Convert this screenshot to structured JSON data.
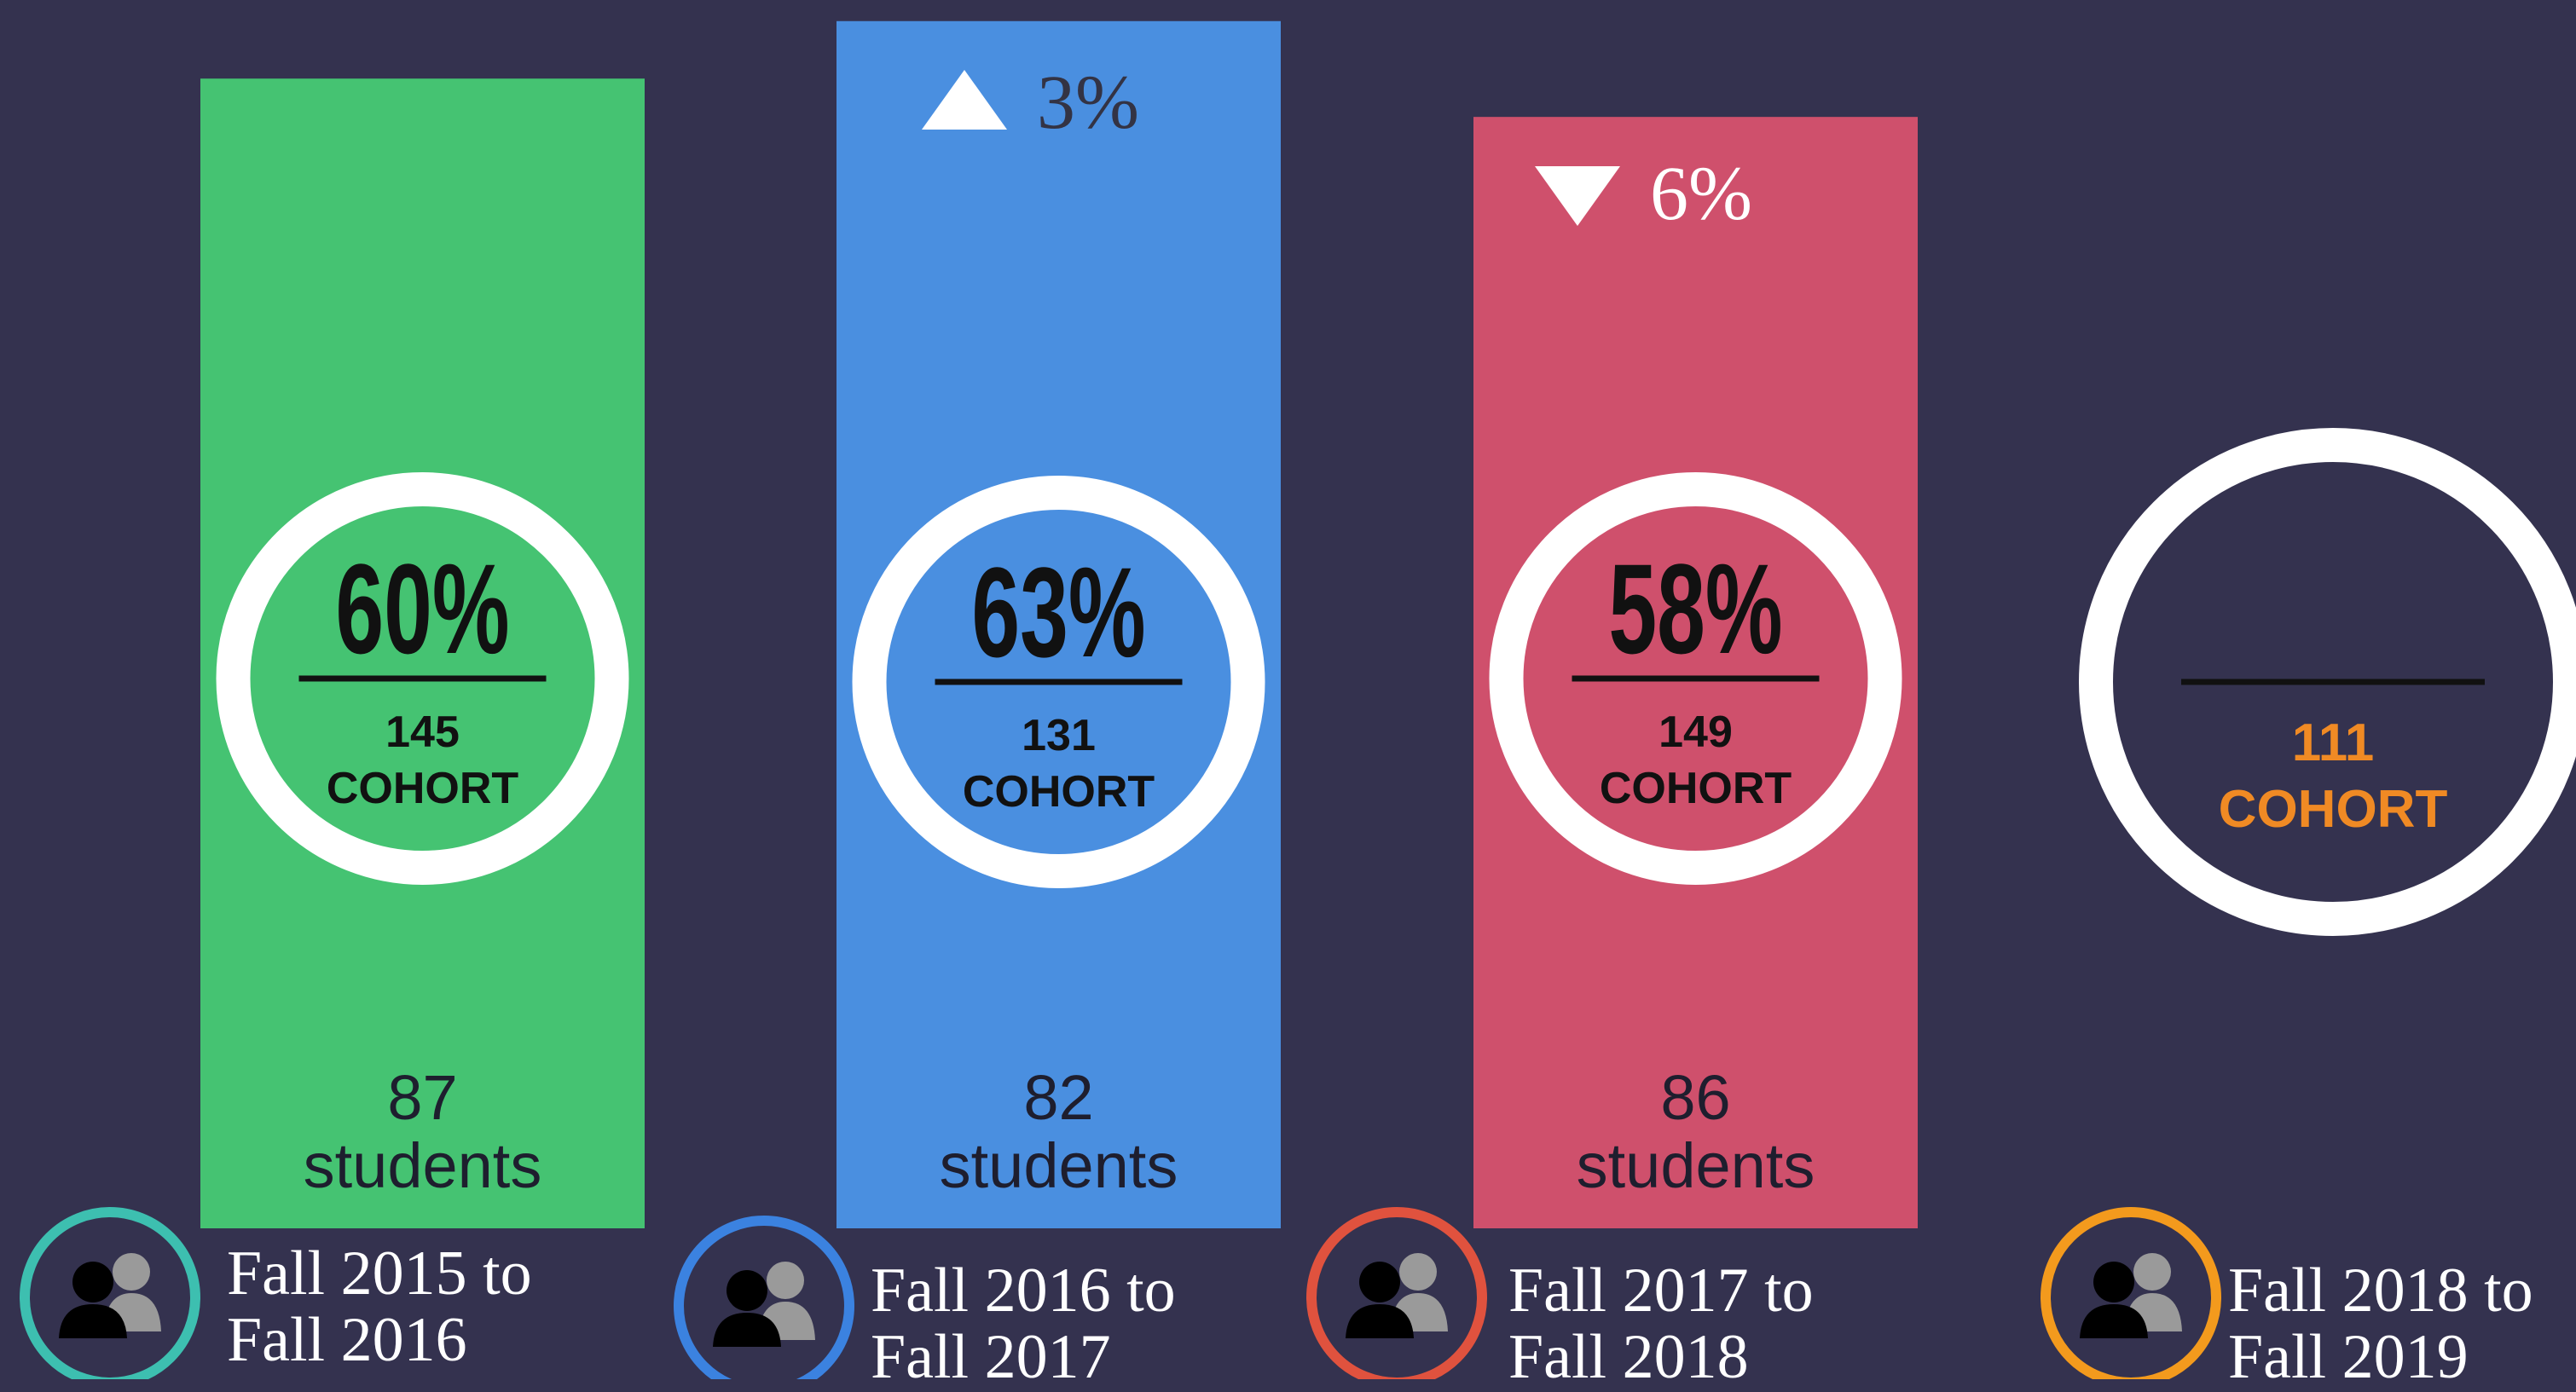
{
  "chart_data": {
    "type": "bar",
    "categories": [
      "Fall 2015 to Fall 2016",
      "Fall 2016 to Fall 2017",
      "Fall 2017 to Fall 2018",
      "Fall 2018 to Fall 2019"
    ],
    "values": [
      60,
      63,
      58,
      null
    ],
    "value_labels": [
      "60%",
      "63%",
      "58%",
      null
    ],
    "colors": [
      "#45c372",
      "#4a8fe0",
      "#cf506c",
      null
    ],
    "cohort": [
      145,
      131,
      149,
      111
    ],
    "cohort_label": "COHORT",
    "students": [
      87,
      82,
      86,
      null
    ],
    "students_label": "students",
    "change": [
      null,
      3,
      -6,
      null
    ],
    "change_labels": [
      null,
      "3%",
      "6%",
      null
    ],
    "icon_colors": [
      "#3dbfb0",
      "#3b82e0",
      "#e0523e",
      "#f39a1d"
    ]
  }
}
